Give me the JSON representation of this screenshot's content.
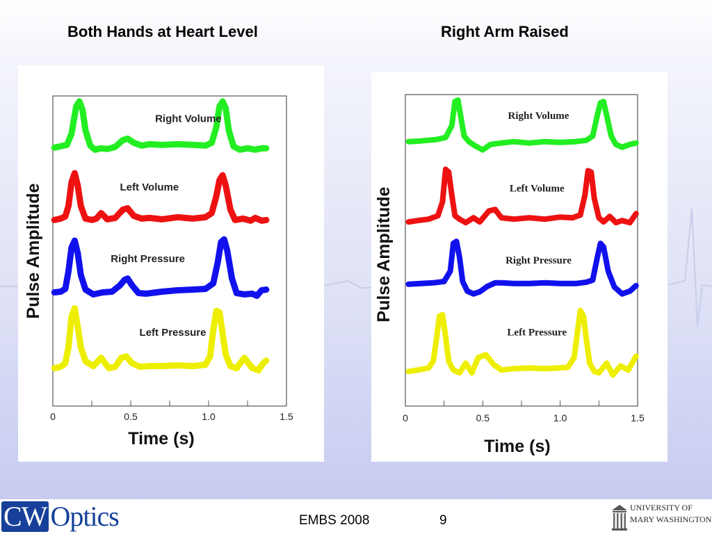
{
  "slide": {
    "title_left": "Both Hands at Heart Level",
    "title_right": "Right Arm Raised"
  },
  "footer": {
    "conference": "EMBS 2008",
    "page_number": "9",
    "logo_left_box": "CW",
    "logo_left_rest": "Optics",
    "logo_right_line1": "UNIVERSITY OF",
    "logo_right_line2": "MARY WASHINGTON"
  },
  "colors": {
    "green": "#22ee22",
    "red": "#ee1111",
    "blue": "#1111ee",
    "yellow": "#eeee00"
  },
  "chart_data": [
    {
      "type": "line",
      "title": "Both Hands at Heart Level",
      "xlabel": "Time (s)",
      "ylabel": "Pulse Amplitude",
      "xlim": [
        0,
        1.5
      ],
      "xticks": [
        0,
        0.5,
        1.0,
        1.5
      ],
      "xtick_labels": [
        "0",
        "0.5",
        "1.0",
        "1.5"
      ],
      "ylim": [
        0,
        4.5
      ],
      "grid": false,
      "series": [
        {
          "name": "Right Volume",
          "color": "#22ee22",
          "x": [
            0.01,
            0.05,
            0.09,
            0.12,
            0.15,
            0.17,
            0.19,
            0.21,
            0.24,
            0.27,
            0.31,
            0.35,
            0.4,
            0.45,
            0.48,
            0.52,
            0.57,
            0.62,
            0.7,
            0.8,
            0.9,
            0.98,
            1.02,
            1.05,
            1.07,
            1.09,
            1.11,
            1.13,
            1.16,
            1.2,
            1.25,
            1.3,
            1.34,
            1.37
          ],
          "y": [
            3.75,
            3.77,
            3.79,
            3.95,
            4.35,
            4.42,
            4.3,
            4.0,
            3.78,
            3.72,
            3.74,
            3.73,
            3.76,
            3.86,
            3.88,
            3.82,
            3.78,
            3.8,
            3.79,
            3.8,
            3.79,
            3.78,
            3.82,
            4.05,
            4.35,
            4.42,
            4.32,
            4.0,
            3.77,
            3.72,
            3.74,
            3.72,
            3.74,
            3.74
          ]
        },
        {
          "name": "Left Volume",
          "color": "#ee1111",
          "x": [
            0.01,
            0.05,
            0.08,
            0.1,
            0.12,
            0.14,
            0.16,
            0.18,
            0.21,
            0.25,
            0.28,
            0.31,
            0.35,
            0.4,
            0.45,
            0.48,
            0.52,
            0.57,
            0.62,
            0.7,
            0.8,
            0.9,
            0.98,
            1.02,
            1.05,
            1.07,
            1.09,
            1.11,
            1.14,
            1.17,
            1.22,
            1.27,
            1.3,
            1.34,
            1.37
          ],
          "y": [
            2.7,
            2.72,
            2.75,
            2.9,
            3.25,
            3.38,
            3.2,
            2.9,
            2.72,
            2.7,
            2.72,
            2.8,
            2.71,
            2.73,
            2.85,
            2.87,
            2.76,
            2.72,
            2.73,
            2.71,
            2.74,
            2.72,
            2.74,
            2.8,
            3.05,
            3.28,
            3.35,
            3.2,
            2.85,
            2.7,
            2.72,
            2.69,
            2.73,
            2.69,
            2.7
          ]
        },
        {
          "name": "Right Pressure",
          "color": "#1111ee",
          "x": [
            0.01,
            0.05,
            0.08,
            0.1,
            0.12,
            0.14,
            0.16,
            0.18,
            0.21,
            0.26,
            0.32,
            0.38,
            0.43,
            0.46,
            0.48,
            0.51,
            0.55,
            0.6,
            0.7,
            0.8,
            0.9,
            0.98,
            1.03,
            1.06,
            1.08,
            1.1,
            1.12,
            1.15,
            1.18,
            1.23,
            1.28,
            1.31,
            1.34,
            1.37
          ],
          "y": [
            1.65,
            1.66,
            1.7,
            1.95,
            2.3,
            2.4,
            2.22,
            1.9,
            1.69,
            1.62,
            1.65,
            1.66,
            1.75,
            1.83,
            1.85,
            1.75,
            1.64,
            1.63,
            1.66,
            1.68,
            1.69,
            1.7,
            1.78,
            2.1,
            2.38,
            2.42,
            2.25,
            1.85,
            1.64,
            1.62,
            1.63,
            1.6,
            1.68,
            1.69
          ]
        },
        {
          "name": "Left Pressure",
          "color": "#eeee00",
          "x": [
            0.01,
            0.05,
            0.08,
            0.1,
            0.12,
            0.14,
            0.16,
            0.18,
            0.21,
            0.26,
            0.31,
            0.36,
            0.4,
            0.44,
            0.47,
            0.51,
            0.56,
            0.62,
            0.7,
            0.8,
            0.9,
            0.98,
            1.01,
            1.03,
            1.05,
            1.07,
            1.09,
            1.11,
            1.14,
            1.18,
            1.23,
            1.28,
            1.32,
            1.35,
            1.37
          ],
          "y": [
            0.55,
            0.57,
            0.62,
            0.85,
            1.3,
            1.42,
            1.15,
            0.85,
            0.65,
            0.58,
            0.7,
            0.55,
            0.57,
            0.7,
            0.72,
            0.62,
            0.57,
            0.58,
            0.58,
            0.59,
            0.58,
            0.6,
            0.72,
            1.1,
            1.38,
            1.36,
            1.05,
            0.75,
            0.58,
            0.55,
            0.7,
            0.55,
            0.52,
            0.62,
            0.66
          ]
        }
      ]
    },
    {
      "type": "line",
      "title": "Right Arm Raised",
      "xlabel": "Time (s)",
      "ylabel": "Pulse Amplitude",
      "xlim": [
        0,
        1.5
      ],
      "xticks": [
        0,
        0.5,
        1.0,
        1.5
      ],
      "xtick_labels": [
        "0",
        "0.5",
        "1.0",
        "1.5"
      ],
      "ylim": [
        0,
        4.5
      ],
      "grid": false,
      "series": [
        {
          "name": "Right Volume",
          "color": "#22ee22",
          "x": [
            0.02,
            0.1,
            0.2,
            0.26,
            0.3,
            0.32,
            0.34,
            0.36,
            0.38,
            0.41,
            0.45,
            0.5,
            0.55,
            0.62,
            0.7,
            0.8,
            0.9,
            1.0,
            1.1,
            1.17,
            1.21,
            1.24,
            1.26,
            1.28,
            1.3,
            1.33,
            1.36,
            1.4,
            1.45,
            1.49
          ],
          "y": [
            3.82,
            3.83,
            3.85,
            3.88,
            4.05,
            4.4,
            4.42,
            4.15,
            3.9,
            3.82,
            3.76,
            3.7,
            3.78,
            3.8,
            3.82,
            3.8,
            3.82,
            3.81,
            3.82,
            3.84,
            3.9,
            4.2,
            4.38,
            4.4,
            4.2,
            3.9,
            3.78,
            3.74,
            3.78,
            3.8
          ]
        },
        {
          "name": "Left Volume",
          "color": "#ee1111",
          "x": [
            0.02,
            0.08,
            0.15,
            0.21,
            0.24,
            0.26,
            0.28,
            0.3,
            0.32,
            0.35,
            0.39,
            0.44,
            0.48,
            0.54,
            0.58,
            0.62,
            0.7,
            0.8,
            0.9,
            1.0,
            1.08,
            1.13,
            1.16,
            1.18,
            1.2,
            1.22,
            1.25,
            1.28,
            1.32,
            1.36,
            1.4,
            1.45,
            1.49
          ],
          "y": [
            2.66,
            2.68,
            2.7,
            2.75,
            2.95,
            3.42,
            3.38,
            3.05,
            2.75,
            2.7,
            2.65,
            2.72,
            2.66,
            2.82,
            2.84,
            2.72,
            2.7,
            2.72,
            2.7,
            2.73,
            2.72,
            2.76,
            3.05,
            3.4,
            3.38,
            3.0,
            2.72,
            2.66,
            2.74,
            2.65,
            2.68,
            2.65,
            2.78
          ]
        },
        {
          "name": "Right Pressure",
          "color": "#1111ee",
          "x": [
            0.02,
            0.1,
            0.18,
            0.25,
            0.29,
            0.31,
            0.33,
            0.35,
            0.37,
            0.4,
            0.44,
            0.48,
            0.53,
            0.58,
            0.62,
            0.7,
            0.8,
            0.9,
            1.0,
            1.1,
            1.17,
            1.21,
            1.24,
            1.26,
            1.28,
            1.31,
            1.35,
            1.4,
            1.45,
            1.49
          ],
          "y": [
            1.76,
            1.77,
            1.78,
            1.8,
            1.95,
            2.35,
            2.38,
            2.15,
            1.8,
            1.66,
            1.62,
            1.65,
            1.73,
            1.78,
            1.78,
            1.77,
            1.77,
            1.78,
            1.77,
            1.77,
            1.79,
            1.82,
            2.15,
            2.35,
            2.3,
            1.95,
            1.72,
            1.62,
            1.66,
            1.74
          ]
        },
        {
          "name": "Left Pressure",
          "color": "#eeee00",
          "x": [
            0.02,
            0.08,
            0.15,
            0.18,
            0.2,
            0.22,
            0.24,
            0.26,
            0.28,
            0.31,
            0.35,
            0.39,
            0.43,
            0.47,
            0.52,
            0.57,
            0.62,
            0.7,
            0.8,
            0.9,
            0.98,
            1.05,
            1.09,
            1.11,
            1.13,
            1.15,
            1.17,
            1.19,
            1.22,
            1.25,
            1.3,
            1.34,
            1.39,
            1.44,
            1.49
          ],
          "y": [
            0.5,
            0.52,
            0.55,
            0.65,
            0.95,
            1.3,
            1.32,
            1.0,
            0.65,
            0.52,
            0.48,
            0.62,
            0.48,
            0.7,
            0.74,
            0.6,
            0.52,
            0.54,
            0.55,
            0.54,
            0.55,
            0.56,
            0.7,
            1.05,
            1.38,
            1.3,
            0.95,
            0.62,
            0.5,
            0.48,
            0.62,
            0.45,
            0.58,
            0.52,
            0.72
          ]
        }
      ]
    }
  ]
}
